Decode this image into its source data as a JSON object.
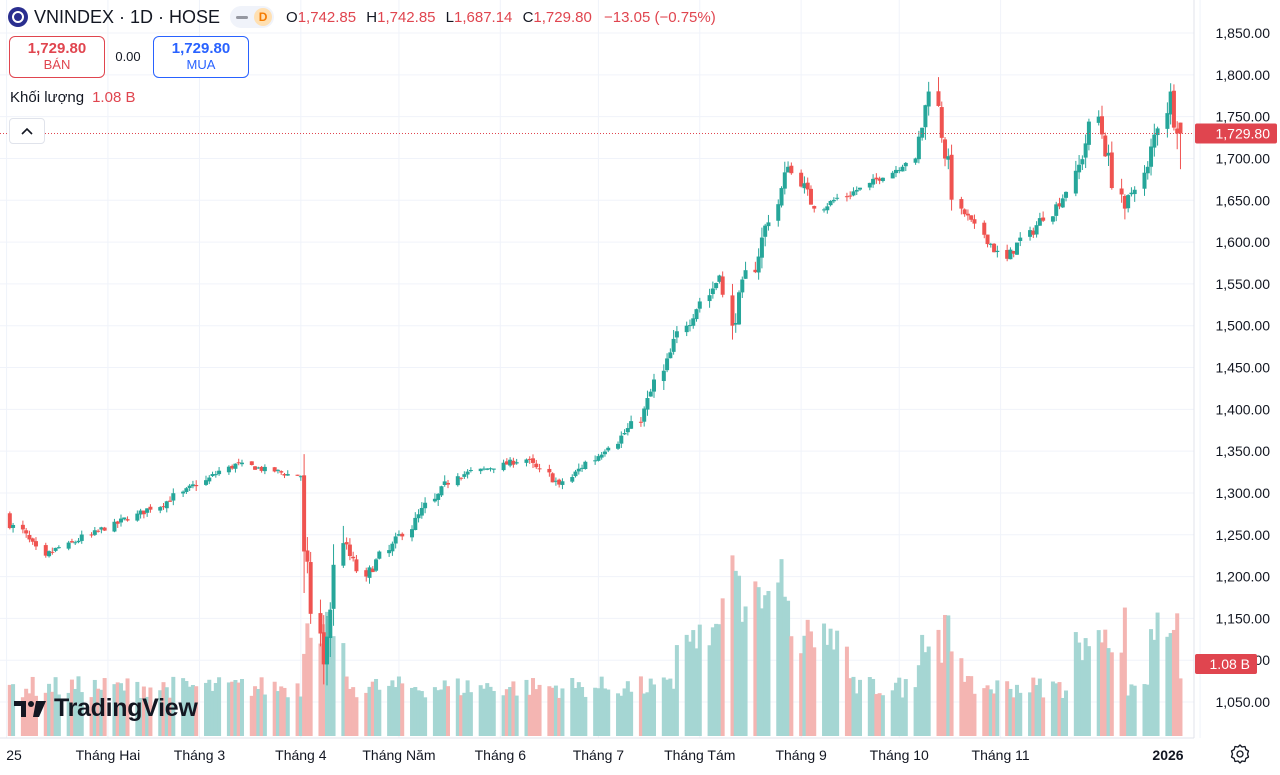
{
  "header": {
    "symbol": "VNINDEX · 1D · HOSE",
    "badge": "D",
    "open_label": "O",
    "open": "1,742.85",
    "high_label": "H",
    "high": "1,742.85",
    "low_label": "L",
    "low": "1,687.14",
    "close_label": "C",
    "close": "1,729.80",
    "change": "−13.05 (−0.75%)"
  },
  "trade": {
    "sell_price": "1,729.80",
    "sell_label": "BÁN",
    "spread": "0.00",
    "buy_price": "1,729.80",
    "buy_label": "MUA"
  },
  "volume_legend": {
    "label": "Khối lượng",
    "value": "1.08 B"
  },
  "collapse_icon": "chevron-up-icon",
  "brand": {
    "name": "TradingView"
  },
  "colors": {
    "up": "#26a69a",
    "down": "#ef5350",
    "up_volume": "#a5d6d3",
    "down_volume": "#f4b5b2",
    "grid": "#f0f3fa"
  },
  "chart_data": {
    "type": "candlestick",
    "price_axis": {
      "ticks": [
        "1,050.00",
        "1,100.00",
        "1,150.00",
        "1,200.00",
        "1,250.00",
        "1,300.00",
        "1,350.00",
        "1,400.00",
        "1,450.00",
        "1,500.00",
        "1,550.00",
        "1,600.00",
        "1,650.00",
        "1,700.00",
        "1,750.00",
        "1,800.00",
        "1,850.00"
      ],
      "range": [
        1025,
        1870
      ]
    },
    "time_axis": {
      "labels": [
        "25",
        "Tháng Hai",
        "Tháng 3",
        "Tháng 4",
        "Tháng Năm",
        "Tháng 6",
        "Tháng 7",
        "Tháng Tám",
        "Tháng 9",
        "Tháng 10",
        "Tháng 11",
        "2026"
      ]
    },
    "last_price": {
      "value": 1729.8,
      "label": "1,729.80"
    },
    "last_volume": {
      "label": "1.08 B"
    },
    "key_points": [
      {
        "date": "2025-01-02",
        "close": 1270
      },
      {
        "date": "2025-01-14",
        "close": 1225
      },
      {
        "date": "2025-02-20",
        "close": 1290
      },
      {
        "date": "2025-03-13",
        "close": 1335
      },
      {
        "date": "2025-04-02",
        "close": 1320
      },
      {
        "date": "2025-04-03",
        "close": 1230
      },
      {
        "date": "2025-04-09",
        "close": 1095
      },
      {
        "date": "2025-04-15",
        "close": 1240
      },
      {
        "date": "2025-04-22",
        "close": 1200
      },
      {
        "date": "2025-05-20",
        "close": 1320
      },
      {
        "date": "2025-06-10",
        "close": 1340
      },
      {
        "date": "2025-06-20",
        "close": 1310
      },
      {
        "date": "2025-07-15",
        "close": 1385
      },
      {
        "date": "2025-07-29",
        "close": 1500
      },
      {
        "date": "2025-08-08",
        "close": 1560
      },
      {
        "date": "2025-08-12",
        "close": 1500
      },
      {
        "date": "2025-08-29",
        "close": 1690
      },
      {
        "date": "2025-09-08",
        "close": 1640
      },
      {
        "date": "2025-09-22",
        "close": 1665
      },
      {
        "date": "2025-10-07",
        "close": 1700
      },
      {
        "date": "2025-10-13",
        "close": 1780
      },
      {
        "date": "2025-10-21",
        "close": 1640
      },
      {
        "date": "2025-11-04",
        "close": 1580
      },
      {
        "date": "2025-11-24",
        "close": 1660
      },
      {
        "date": "2025-12-02",
        "close": 1750
      },
      {
        "date": "2025-12-10",
        "close": 1640
      },
      {
        "date": "2025-12-17",
        "close": 1690
      },
      {
        "date": "2025-12-24",
        "close": 1780
      },
      {
        "date": "2025-12-26",
        "close": 1729.8
      }
    ]
  }
}
